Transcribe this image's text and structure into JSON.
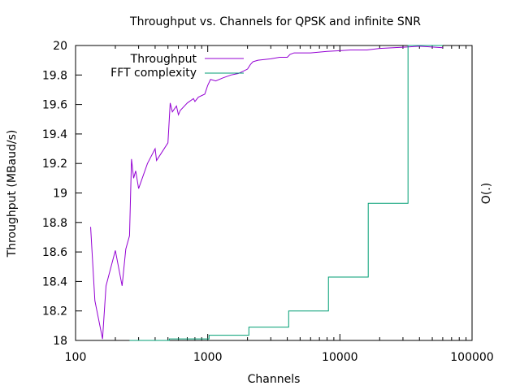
{
  "chart_data": {
    "type": "line",
    "title": "Throughput vs. Channels for QPSK and infinite SNR",
    "xlabel": "Channels",
    "ylabel": "Throughput (MBaud/s)",
    "y2label": "O(.)",
    "xscale": "log",
    "xlim": [
      100,
      100000
    ],
    "ylim": [
      18,
      20
    ],
    "xticks": [
      100,
      1000,
      10000,
      100000
    ],
    "xtick_labels": [
      "100",
      "1000",
      "10000",
      "100000"
    ],
    "yticks": [
      18,
      18.2,
      18.4,
      18.6,
      18.8,
      19,
      19.2,
      19.4,
      19.6,
      19.8,
      20
    ],
    "ytick_labels": [
      "18",
      "18.2",
      "18.4",
      "18.6",
      "18.8",
      "19",
      "19.2",
      "19.4",
      "19.6",
      "19.8",
      "20"
    ],
    "grid": false,
    "legend_position": "top-left",
    "series": [
      {
        "name": "Throughput",
        "color": "#9400d3",
        "x": [
          130,
          140,
          160,
          170,
          200,
          225,
          240,
          256,
          265,
          275,
          285,
          300,
          350,
          400,
          410,
          500,
          520,
          540,
          580,
          600,
          620,
          700,
          780,
          800,
          850,
          950,
          1000,
          1050,
          1150,
          1300,
          1500,
          1700,
          1800,
          2000,
          2100,
          2200,
          2400,
          3000,
          3500,
          4000,
          4200,
          4500,
          6000,
          8000,
          10000,
          12000,
          16000,
          20000,
          32000,
          40000,
          50000,
          60000
        ],
        "y": [
          18.77,
          18.27,
          18.01,
          18.37,
          18.61,
          18.37,
          18.62,
          18.71,
          19.23,
          19.1,
          19.15,
          19.03,
          19.2,
          19.3,
          19.22,
          19.34,
          19.61,
          19.55,
          19.59,
          19.53,
          19.56,
          19.61,
          19.64,
          19.62,
          19.65,
          19.67,
          19.73,
          19.77,
          19.76,
          19.78,
          19.8,
          19.81,
          19.82,
          19.84,
          19.87,
          19.89,
          19.9,
          19.91,
          19.92,
          19.92,
          19.94,
          19.95,
          19.95,
          19.96,
          19.965,
          19.97,
          19.97,
          19.98,
          19.99,
          19.995,
          19.99,
          19.985
        ]
      },
      {
        "name": "FFT complexity",
        "color": "#009e73",
        "step": true,
        "x": [
          256,
          512,
          1024,
          2048,
          4096,
          8192,
          16384,
          32768,
          60000
        ],
        "y": [
          18.0,
          18.01,
          18.035,
          18.09,
          18.2,
          18.43,
          18.93,
          20.0,
          20.0
        ]
      }
    ]
  }
}
